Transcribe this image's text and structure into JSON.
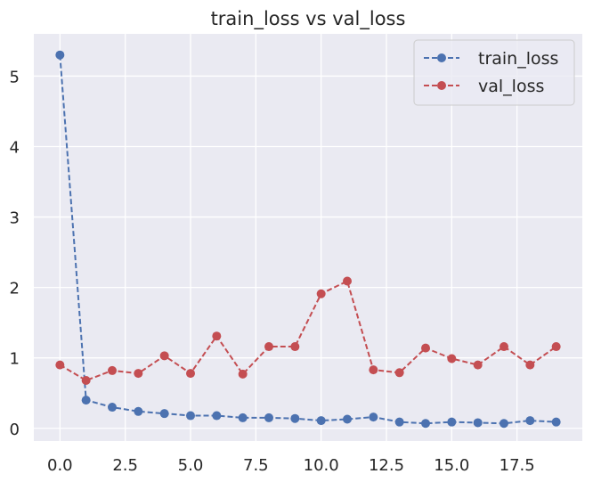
{
  "chart_data": {
    "type": "line",
    "title": "train_loss vs val_loss",
    "xlabel": "",
    "ylabel": "",
    "xlim": [
      -1.0,
      20.0
    ],
    "ylim": [
      -0.18,
      5.6
    ],
    "x_ticks": [
      0.0,
      2.5,
      5.0,
      7.5,
      10.0,
      12.5,
      15.0,
      17.5
    ],
    "x_tick_labels": [
      "0.0",
      "2.5",
      "5.0",
      "7.5",
      "10.0",
      "12.5",
      "15.0",
      "17.5"
    ],
    "y_ticks": [
      0,
      1,
      2,
      3,
      4,
      5
    ],
    "y_tick_labels": [
      "0",
      "1",
      "2",
      "3",
      "4",
      "5"
    ],
    "grid": true,
    "legend_position": "top-right",
    "x": [
      0,
      1,
      2,
      3,
      4,
      5,
      6,
      7,
      8,
      9,
      10,
      11,
      12,
      13,
      14,
      15,
      16,
      17,
      18,
      19
    ],
    "series": [
      {
        "name": "train_loss",
        "color": "#4c72b0",
        "linestyle": "dashed",
        "marker": "circle",
        "values": [
          5.3,
          0.4,
          0.3,
          0.24,
          0.21,
          0.18,
          0.18,
          0.15,
          0.15,
          0.14,
          0.11,
          0.13,
          0.16,
          0.09,
          0.07,
          0.09,
          0.08,
          0.07,
          0.11,
          0.09
        ]
      },
      {
        "name": "val_loss",
        "color": "#c44e52",
        "linestyle": "dashed",
        "marker": "circle",
        "values": [
          0.9,
          0.68,
          0.82,
          0.78,
          1.03,
          0.78,
          1.31,
          0.77,
          1.16,
          1.16,
          1.91,
          2.09,
          0.83,
          0.79,
          1.14,
          0.99,
          0.9,
          1.16,
          0.9,
          1.16
        ]
      }
    ]
  },
  "colors": {
    "plot_background": "#eaeaf2",
    "grid": "#ffffff",
    "text": "#262626"
  }
}
